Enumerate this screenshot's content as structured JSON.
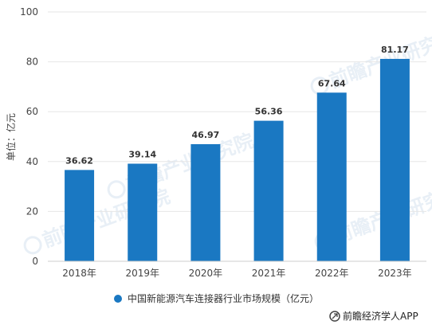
{
  "chart_data": {
    "type": "bar",
    "categories": [
      "2018年",
      "2019年",
      "2020年",
      "2021年",
      "2022年",
      "2023年"
    ],
    "values": [
      36.62,
      39.14,
      46.97,
      56.36,
      67.64,
      81.17
    ],
    "value_labels": [
      "36.62",
      "39.14",
      "46.97",
      "56.36",
      "67.64",
      "81.17"
    ],
    "ylabel": "单位：亿元",
    "ylim": [
      0,
      100
    ],
    "yticks": [
      0,
      20,
      40,
      60,
      80,
      100
    ],
    "grid": true,
    "legend": {
      "position": "bottom",
      "label": "中国新能源汽车连接器行业市场规模（亿元）"
    },
    "bar_color": "#1a78c2"
  },
  "footer": {
    "brand": "前瞻经济学人APP"
  },
  "watermark": {
    "text": "前瞻产业研究院"
  }
}
